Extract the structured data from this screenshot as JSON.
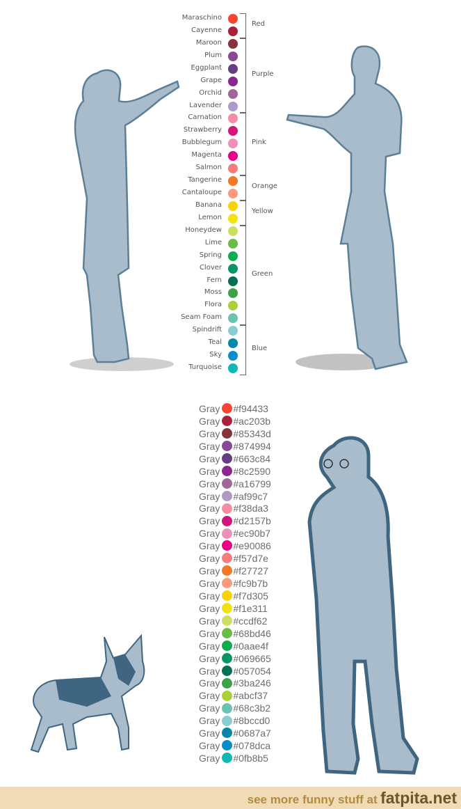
{
  "women_colors": [
    {
      "name": "Maraschino",
      "color": "#f94433"
    },
    {
      "name": "Cayenne",
      "color": "#ac203b"
    },
    {
      "name": "Maroon",
      "color": "#85343d"
    },
    {
      "name": "Plum",
      "color": "#874994"
    },
    {
      "name": "Eggplant",
      "color": "#663c84"
    },
    {
      "name": "Grape",
      "color": "#8c2590"
    },
    {
      "name": "Orchid",
      "color": "#a16799"
    },
    {
      "name": "Lavender",
      "color": "#af99c7"
    },
    {
      "name": "Carnation",
      "color": "#f38da3"
    },
    {
      "name": "Strawberry",
      "color": "#d2157b"
    },
    {
      "name": "Bubblegum",
      "color": "#ec90b7"
    },
    {
      "name": "Magenta",
      "color": "#e90086"
    },
    {
      "name": "Salmon",
      "color": "#f57d7e"
    },
    {
      "name": "Tangerine",
      "color": "#f27727"
    },
    {
      "name": "Cantaloupe",
      "color": "#fc9b7b"
    },
    {
      "name": "Banana",
      "color": "#f7d305"
    },
    {
      "name": "Lemon",
      "color": "#f1e311"
    },
    {
      "name": "Honeydew",
      "color": "#ccdf62"
    },
    {
      "name": "Lime",
      "color": "#68bd46"
    },
    {
      "name": "Spring",
      "color": "#0aae4f"
    },
    {
      "name": "Clover",
      "color": "#069665"
    },
    {
      "name": "Fern",
      "color": "#057054"
    },
    {
      "name": "Moss",
      "color": "#3ba246"
    },
    {
      "name": "Flora",
      "color": "#abcf37"
    },
    {
      "name": "Seam Foam",
      "color": "#68c3b2"
    },
    {
      "name": "Spindrift",
      "color": "#8bccd0"
    },
    {
      "name": "Teal",
      "color": "#0687a7"
    },
    {
      "name": "Sky",
      "color": "#078dca"
    },
    {
      "name": "Turquoise",
      "color": "#0fb8b5"
    }
  ],
  "men_groups": [
    {
      "label": "Red",
      "from": 0,
      "to": 1
    },
    {
      "label": "Purple",
      "from": 2,
      "to": 7
    },
    {
      "label": "Pink",
      "from": 8,
      "to": 12
    },
    {
      "label": "Orange",
      "from": 13,
      "to": 14
    },
    {
      "label": "Yellow",
      "from": 15,
      "to": 16
    },
    {
      "label": "Green",
      "from": 17,
      "to": 24
    },
    {
      "label": "Blue",
      "from": 25,
      "to": 28
    }
  ],
  "gray_label": "Gray",
  "hex_codes": [
    "#f94433",
    "#ac203b",
    "#85343d",
    "#874994",
    "#663c84",
    "#8c2590",
    "#a16799",
    "#af99c7",
    "#f38da3",
    "#d2157b",
    "#ec90b7",
    "#e90086",
    "#f57d7e",
    "#f27727",
    "#fc9b7b",
    "#f7d305",
    "#f1e311",
    "#ccdf62",
    "#68bd46",
    "#0aae4f",
    "#069665",
    "#057054",
    "#3ba246",
    "#abcf37",
    "#68c3b2",
    "#8bccd0",
    "#0687a7",
    "#078dca",
    "#0fb8b5"
  ],
  "figure_colors": {
    "fill": "#a8bccb",
    "outline": "#5b7f98",
    "shadow": "#8a8a8a"
  },
  "footer": {
    "prefix": "see more funny stuff at",
    "site": "fatpita.net",
    "bg": "#efdcb6"
  }
}
